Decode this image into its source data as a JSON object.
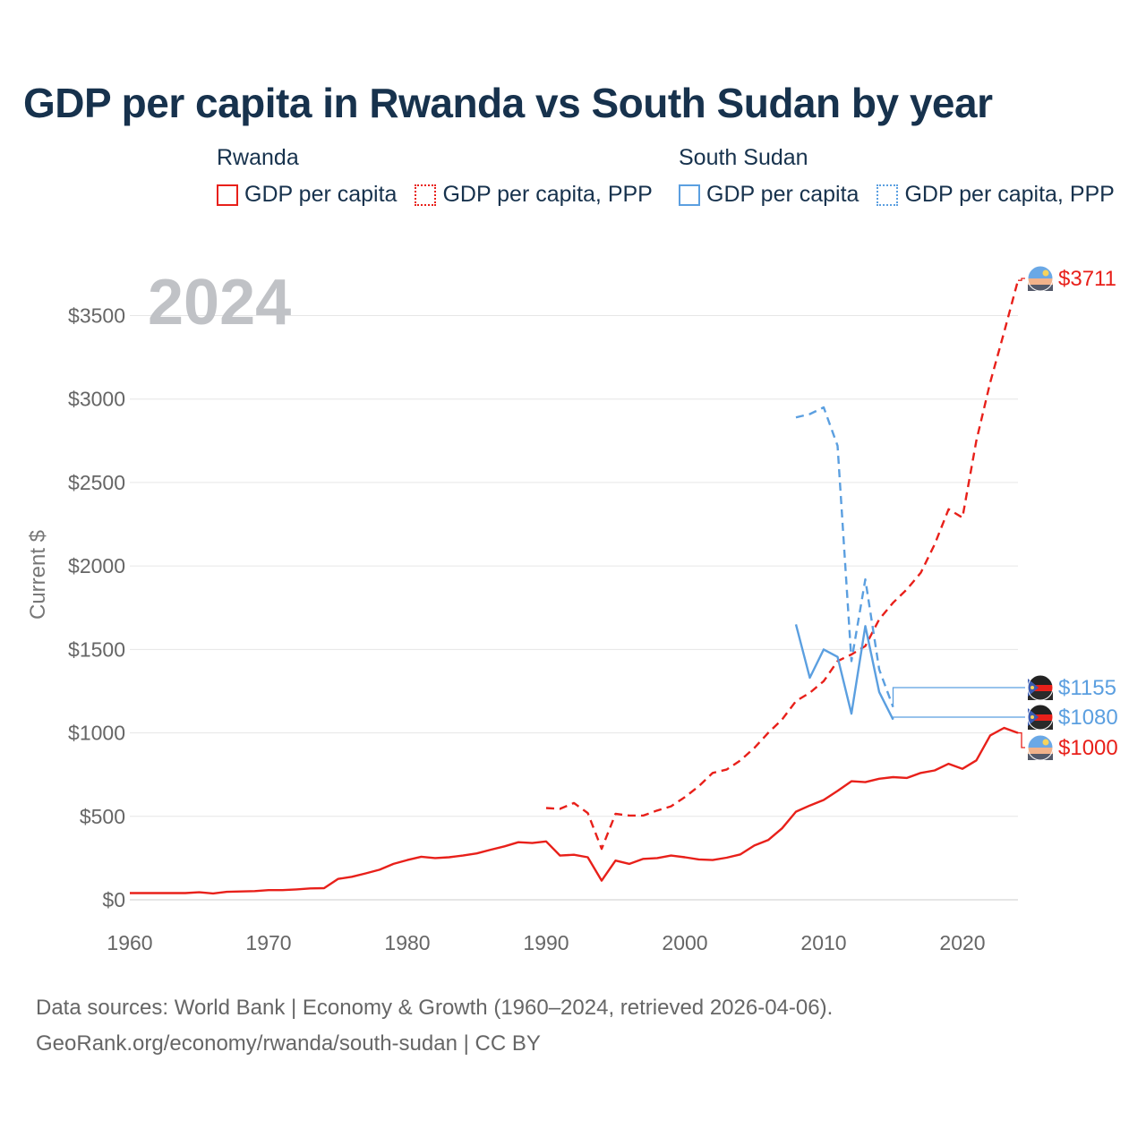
{
  "title": "GDP per capita in Rwanda vs South Sudan by year",
  "legend": {
    "groups": [
      {
        "country": "Rwanda",
        "color": "#e8201a",
        "items": [
          {
            "label": "GDP per capita",
            "style": "solid"
          },
          {
            "label": "GDP per capita, PPP",
            "style": "dotted"
          }
        ]
      },
      {
        "country": "South Sudan",
        "color": "#5b9fe0",
        "items": [
          {
            "label": "GDP per capita",
            "style": "solid"
          },
          {
            "label": "GDP per capita, PPP",
            "style": "dotted"
          }
        ]
      }
    ]
  },
  "footer": {
    "line1": "Data sources: World Bank | Economy & Growth (1960–2024, retrieved 2026-04-06).",
    "line2": "GeoRank.org/economy/rwanda/south-sudan | CC BY"
  },
  "chart_data": {
    "type": "line",
    "title": "GDP per capita in Rwanda vs South Sudan by year",
    "year_label": "2024",
    "xlabel": "",
    "ylabel": "Current $",
    "xlim": [
      1960,
      2024
    ],
    "ylim": [
      0,
      3700
    ],
    "x_ticks": [
      "1960",
      "1970",
      "1980",
      "1990",
      "2000",
      "2010",
      "2020"
    ],
    "y_ticks": [
      "$0",
      "$500",
      "$1000",
      "$1500",
      "$2000",
      "$2500",
      "$3000",
      "$3500"
    ],
    "y_tick_values": [
      0,
      500,
      1000,
      1500,
      2000,
      2500,
      3000,
      3500
    ],
    "grid": true,
    "series": [
      {
        "name": "Rwanda GDP per capita",
        "country": "Rwanda",
        "color": "#e8201a",
        "dash": "solid",
        "end_label": "$1000",
        "x": [
          1960,
          1961,
          1962,
          1963,
          1964,
          1965,
          1966,
          1967,
          1968,
          1969,
          1970,
          1971,
          1972,
          1973,
          1974,
          1975,
          1976,
          1977,
          1978,
          1979,
          1980,
          1981,
          1982,
          1983,
          1984,
          1985,
          1986,
          1987,
          1988,
          1989,
          1990,
          1991,
          1992,
          1993,
          1994,
          1995,
          1996,
          1997,
          1998,
          1999,
          2000,
          2001,
          2002,
          2003,
          2004,
          2005,
          2006,
          2007,
          2008,
          2009,
          2010,
          2011,
          2012,
          2013,
          2014,
          2015,
          2016,
          2017,
          2018,
          2019,
          2020,
          2021,
          2022,
          2023,
          2024
        ],
        "values": [
          40,
          40,
          40,
          40,
          40,
          45,
          38,
          48,
          50,
          52,
          58,
          58,
          62,
          68,
          70,
          125,
          138,
          158,
          180,
          215,
          238,
          258,
          250,
          255,
          265,
          278,
          300,
          320,
          345,
          340,
          350,
          265,
          270,
          255,
          115,
          235,
          215,
          245,
          250,
          265,
          255,
          242,
          238,
          252,
          272,
          325,
          358,
          428,
          528,
          565,
          598,
          652,
          710,
          705,
          725,
          735,
          730,
          760,
          775,
          815,
          785,
          835,
          985,
          1030,
          1000
        ]
      },
      {
        "name": "Rwanda GDP per capita, PPP",
        "country": "Rwanda",
        "color": "#e8201a",
        "dash": "dotted",
        "end_label": "$3711",
        "x": [
          1990,
          1991,
          1992,
          1993,
          1994,
          1995,
          1996,
          1997,
          1998,
          1999,
          2000,
          2001,
          2002,
          2003,
          2004,
          2005,
          2006,
          2007,
          2008,
          2009,
          2010,
          2011,
          2012,
          2013,
          2014,
          2015,
          2016,
          2017,
          2018,
          2019,
          2020,
          2021,
          2022,
          2023,
          2024
        ],
        "values": [
          550,
          545,
          580,
          520,
          305,
          515,
          505,
          505,
          535,
          560,
          615,
          680,
          760,
          780,
          835,
          910,
          1000,
          1080,
          1190,
          1240,
          1310,
          1430,
          1470,
          1520,
          1680,
          1780,
          1860,
          1960,
          2130,
          2340,
          2290,
          2750,
          3100,
          3400,
          3711
        ]
      },
      {
        "name": "South Sudan GDP per capita",
        "country": "South Sudan",
        "color": "#5b9fe0",
        "dash": "solid",
        "end_label": "$1080",
        "x": [
          2008,
          2009,
          2010,
          2011,
          2012,
          2013,
          2014,
          2015
        ],
        "values": [
          1650,
          1330,
          1500,
          1455,
          1115,
          1640,
          1245,
          1080
        ]
      },
      {
        "name": "South Sudan GDP per capita, PPP",
        "country": "South Sudan",
        "color": "#5b9fe0",
        "dash": "dotted",
        "end_label": "$1155",
        "x": [
          2008,
          2009,
          2010,
          2011,
          2012,
          2013,
          2014,
          2015
        ],
        "values": [
          2890,
          2910,
          2950,
          2720,
          1430,
          1920,
          1380,
          1155
        ]
      }
    ]
  }
}
